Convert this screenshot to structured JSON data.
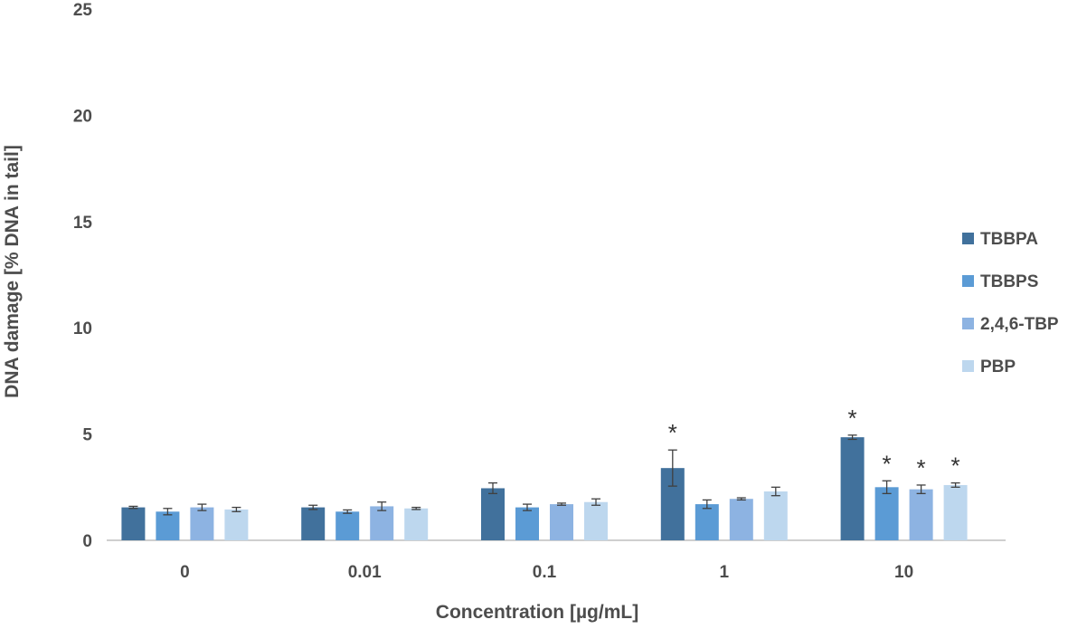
{
  "chart_data": {
    "type": "bar",
    "title": "",
    "xlabel": "Concentration [µg/mL]",
    "ylabel": "DNA damage [% DNA in tail]",
    "ylim": [
      0,
      25
    ],
    "yticks": [
      0,
      5,
      10,
      15,
      20,
      25
    ],
    "grid": false,
    "legend_position": "right",
    "categories": [
      "0",
      "0.01",
      "0.1",
      "1",
      "10"
    ],
    "series": [
      {
        "name": "TBBPA",
        "color": "#41719c",
        "values": [
          1.55,
          1.55,
          2.45,
          3.4,
          4.85
        ],
        "errors": [
          0.05,
          0.1,
          0.25,
          0.85,
          0.1
        ],
        "significant": [
          false,
          false,
          false,
          true,
          true
        ]
      },
      {
        "name": "TBBPS",
        "color": "#5b9bd5",
        "values": [
          1.35,
          1.35,
          1.55,
          1.7,
          2.5
        ],
        "errors": [
          0.15,
          0.08,
          0.15,
          0.2,
          0.3
        ],
        "significant": [
          false,
          false,
          false,
          false,
          true
        ]
      },
      {
        "name": "2,4,6-TBP",
        "color": "#8db3e2",
        "values": [
          1.55,
          1.6,
          1.7,
          1.95,
          2.4
        ],
        "errors": [
          0.15,
          0.2,
          0.05,
          0.05,
          0.2
        ],
        "significant": [
          false,
          false,
          false,
          false,
          true
        ]
      },
      {
        "name": "PBP",
        "color": "#bdd7ee",
        "values": [
          1.45,
          1.5,
          1.8,
          2.3,
          2.6
        ],
        "errors": [
          0.1,
          0.05,
          0.15,
          0.2,
          0.1
        ],
        "significant": [
          false,
          false,
          false,
          false,
          true
        ]
      }
    ],
    "significance_marker": "*"
  }
}
